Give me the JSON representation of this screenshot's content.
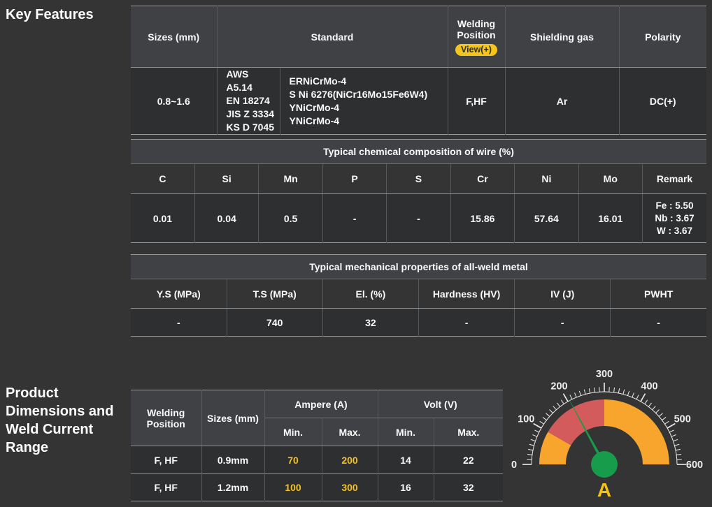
{
  "headings": {
    "key_features": "Key Features",
    "product_dimensions": "Product Dimensions and Weld Current Range"
  },
  "standard_table": {
    "headers": {
      "sizes": "Sizes (mm)",
      "standard": "Standard",
      "welding_position": "Welding Position",
      "view_badge": "View(+)",
      "shielding_gas": "Shielding gas",
      "polarity": "Polarity"
    },
    "row": {
      "sizes": "0.8~1.6",
      "standard_orgs": [
        "AWS A5.14",
        "EN 18274",
        "JIS Z 3334",
        "KS D 7045"
      ],
      "standard_specs": [
        "ERNiCrMo-4",
        "S Ni 6276(NiCr16Mo15Fe6W4)",
        "YNiCrMo-4",
        "YNiCrMo-4"
      ],
      "welding_position": "F,HF",
      "shielding_gas": "Ar",
      "polarity": "DC(+)"
    }
  },
  "chem_table": {
    "title": "Typical chemical composition of wire (%)",
    "headers": [
      "C",
      "Si",
      "Mn",
      "P",
      "S",
      "Cr",
      "Ni",
      "Mo",
      "Remark"
    ],
    "values": [
      "0.01",
      "0.04",
      "0.5",
      "-",
      "-",
      "15.86",
      "57.64",
      "16.01"
    ],
    "remark_lines": [
      "Fe : 5.50",
      "Nb : 3.67",
      "W : 3.67"
    ]
  },
  "mech_table": {
    "title": "Typical mechanical properties of all-weld metal",
    "headers": [
      "Y.S (MPa)",
      "T.S (MPa)",
      "El. (%)",
      "Hardness (HV)",
      "IV (J)",
      "PWHT"
    ],
    "values": [
      "-",
      "740",
      "32",
      "-",
      "-",
      "-"
    ]
  },
  "current_table": {
    "headers": {
      "welding_position": "Welding Position",
      "sizes": "Sizes (mm)",
      "ampere": "Ampere (A)",
      "volt": "Volt (V)",
      "min": "Min.",
      "max": "Max."
    },
    "rows": [
      {
        "position": "F, HF",
        "size": "0.9mm",
        "amp_min": "70",
        "amp_max": "200",
        "volt_min": "14",
        "volt_max": "22"
      },
      {
        "position": "F, HF",
        "size": "1.2mm",
        "amp_min": "100",
        "amp_max": "300",
        "volt_min": "16",
        "volt_max": "32"
      }
    ]
  },
  "chart_data": {
    "type": "gauge",
    "title": "Weld current range gauge (Ampere)",
    "min": 0,
    "max": 600,
    "major_ticks": [
      0,
      100,
      200,
      300,
      400,
      500,
      600
    ],
    "minor_tick_step": 12.5,
    "segments": [
      {
        "from": 0,
        "to": 100,
        "color": "#f7a52c"
      },
      {
        "from": 100,
        "to": 300,
        "color": "#d35b5b"
      },
      {
        "from": 300,
        "to": 600,
        "color": "#f7a52c"
      }
    ],
    "needle_value": 205,
    "needle_color": "#179c4b",
    "hub_color": "#179c4b",
    "tick_color": "#ededed",
    "unit_label": "A",
    "unit_label_color": "#f2c219"
  }
}
